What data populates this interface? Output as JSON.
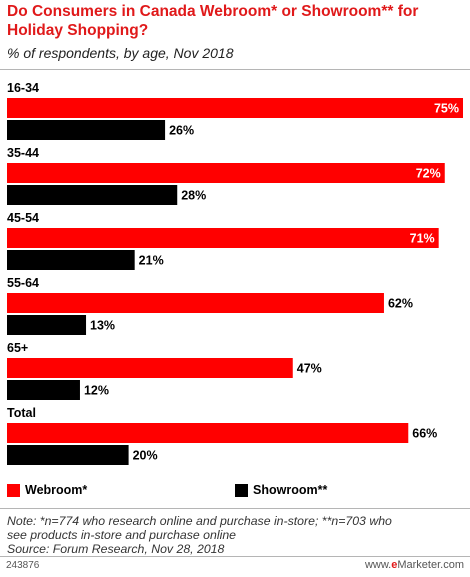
{
  "title": "Do Consumers in Canada Webroom* or Showroom** for Holiday Shopping?",
  "subtitle": "% of respondents, by age, Nov 2018",
  "note_line1": "Note: *n=774 who research online and purchase in-store; **n=703 who",
  "note_line2": "see products in-store and purchase online",
  "source": "Source: Forum Research, Nov 28, 2018",
  "chart_id": "243876",
  "brand": {
    "prefix": "www.",
    "accent": "e",
    "name": "Marketer",
    "suffix": ".com"
  },
  "chart_data": {
    "type": "bar",
    "orientation": "horizontal",
    "categories": [
      "16-34",
      "35-44",
      "45-54",
      "55-64",
      "65+",
      "Total"
    ],
    "series": [
      {
        "name": "Webroom*",
        "color": "#ff0000",
        "values": [
          75,
          72,
          71,
          62,
          47,
          66
        ]
      },
      {
        "name": "Showroom**",
        "color": "#000000",
        "values": [
          26,
          28,
          21,
          13,
          12,
          20
        ]
      }
    ],
    "unit": "%",
    "xlim": [
      0,
      75
    ],
    "grid": false,
    "legend": "bottom"
  }
}
